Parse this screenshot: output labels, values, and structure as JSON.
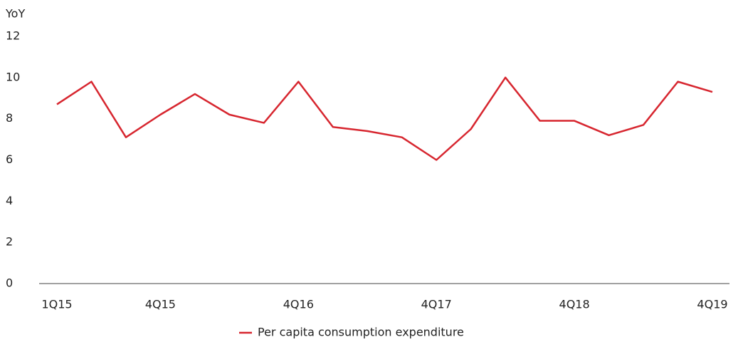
{
  "chart_data": {
    "type": "line",
    "y_label": "YoY",
    "categories": [
      "1Q15",
      null,
      null,
      "4Q15",
      null,
      null,
      null,
      "4Q16",
      null,
      null,
      null,
      "4Q17",
      null,
      null,
      null,
      "4Q18",
      null,
      null,
      null,
      "4Q19"
    ],
    "series": [
      {
        "name": "Per capita consumption expenditure",
        "color": "#d7262f",
        "values": [
          8.7,
          9.8,
          7.1,
          8.2,
          9.2,
          8.2,
          7.8,
          9.8,
          7.6,
          7.4,
          7.1,
          6.0,
          7.5,
          10.0,
          7.9,
          7.9,
          7.2,
          7.7,
          9.8,
          9.3
        ]
      }
    ],
    "ylim": [
      0,
      12
    ],
    "yticks": [
      0,
      2,
      4,
      6,
      8,
      10,
      12
    ],
    "grid": false,
    "legend": "bottom"
  }
}
